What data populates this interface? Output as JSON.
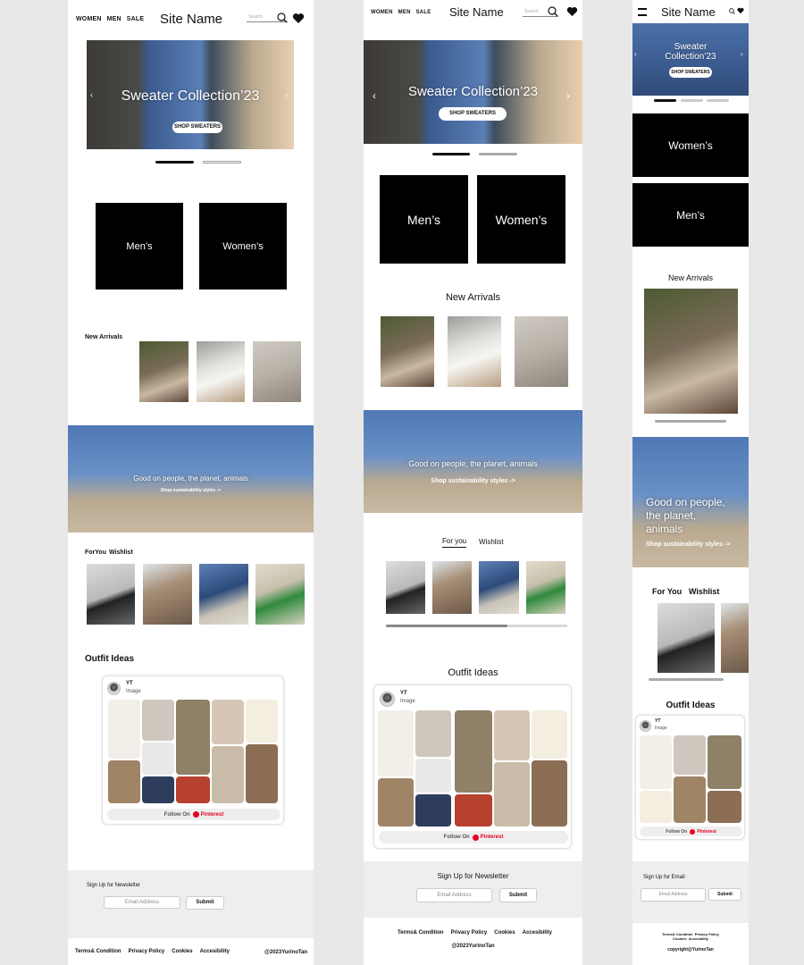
{
  "brand": {
    "site_name": "Site Name"
  },
  "nav": {
    "women": "WOMEN",
    "men": "MEN",
    "sale": "SALE"
  },
  "search": {
    "placeholder": "Search"
  },
  "hero": {
    "title": "Sweater Collection’23",
    "title_mobile": "Sweater Collection’23",
    "cta": "SHOP SWEATERS"
  },
  "categories": {
    "mens": "Men’s",
    "womens": "Women’s"
  },
  "new_arrivals": {
    "title": "New Arrivals"
  },
  "sustainability": {
    "title": "Good on people, the planet, animals",
    "link": "Shop sustainability styles ->"
  },
  "tabs": {
    "desktop_for_you": "ForYou",
    "for_you": "For you",
    "mobile_for_you": "For You",
    "wishlist": "Wishlist"
  },
  "outfits": {
    "title": "Outfit Ideas",
    "user": "YT",
    "type": "Image",
    "follow": "Follow On",
    "pinterest": "Pinterest"
  },
  "newsletter": {
    "title": "Sign Up for Newsletter",
    "title_mobile": "Sign Up for Email",
    "placeholder": "Email Address",
    "submit": "Submit"
  },
  "footer": {
    "terms": "Terms& Condition",
    "privacy": "Privacy Policy",
    "cookies": "Cookies",
    "accessibility": "Accesibility",
    "copyright_desktop": "@2023YurinoTan",
    "copyright_tablet": "@2023YurinoTan",
    "copyright_mobile": "copyright@YurinoTan"
  },
  "colors": {
    "black": "#000000",
    "accent_red": "#e60023",
    "background": "#e8e8e8",
    "section_grey": "#eeeeee"
  },
  "icons": [
    "search-icon",
    "heart-icon",
    "menu-icon",
    "chevron-left-icon",
    "chevron-right-icon",
    "pinterest-icon"
  ]
}
